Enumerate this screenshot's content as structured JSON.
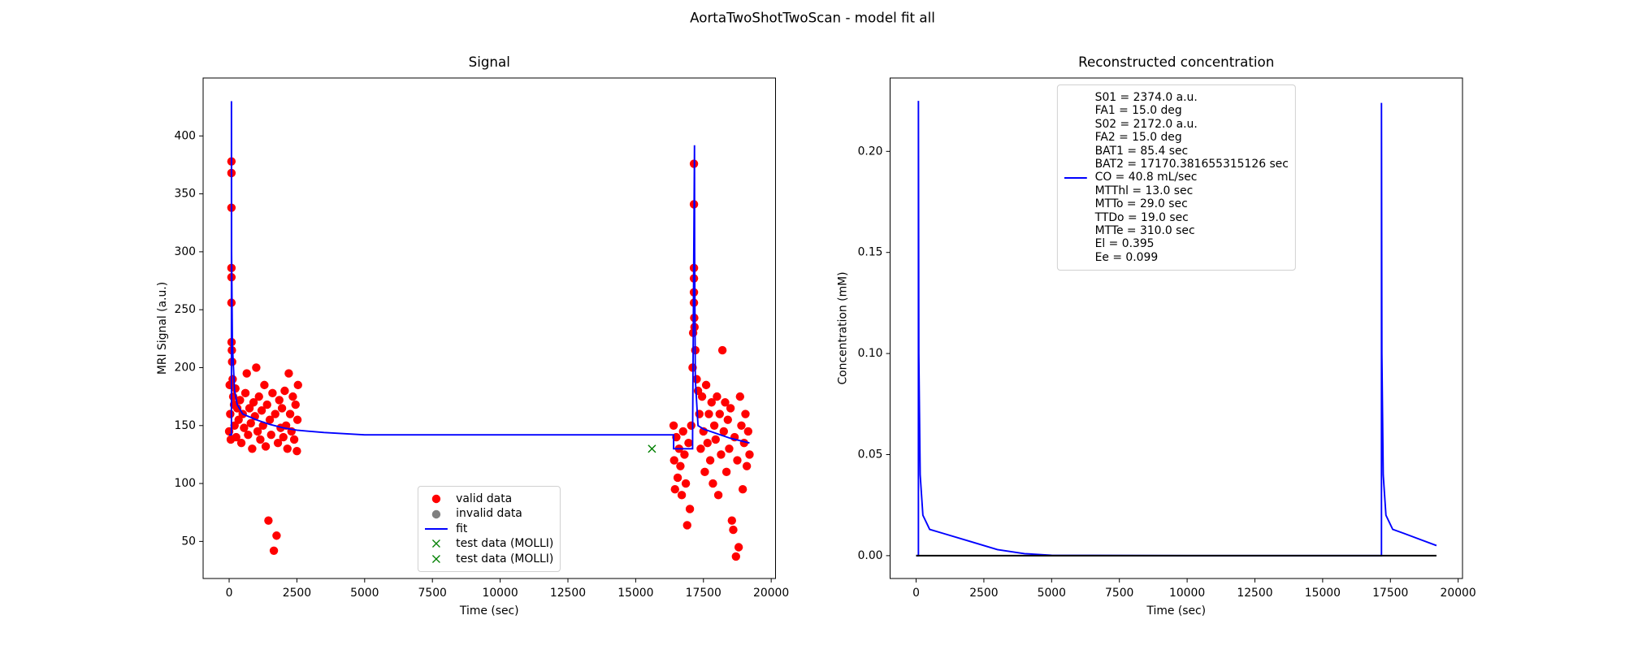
{
  "title": "AortaTwoShotTwoScan - model fit all",
  "chart_data": [
    {
      "type": "line",
      "title": "Signal",
      "xlabel": "Time (sec)",
      "ylabel": "MRI Signal (a.u.)",
      "xlim": [
        -960,
        20160
      ],
      "ylim": [
        18,
        450
      ],
      "xticks": [
        0,
        2500,
        5000,
        7500,
        10000,
        12500,
        15000,
        17500,
        20000
      ],
      "yticks": [
        50,
        100,
        150,
        200,
        250,
        300,
        350,
        400
      ],
      "legend": "lower center",
      "series": [
        {
          "name": "valid data",
          "type": "scatter",
          "marker": "o",
          "color": "#ff0000",
          "x": [
            0,
            20,
            40,
            60,
            85,
            85,
            85,
            85,
            85,
            85,
            90,
            100,
            110,
            130,
            150,
            180,
            200,
            230,
            260,
            300,
            350,
            400,
            450,
            500,
            550,
            600,
            650,
            700,
            750,
            800,
            850,
            900,
            950,
            1000,
            1050,
            1100,
            1150,
            1200,
            1250,
            1300,
            1350,
            1400,
            1450,
            1500,
            1550,
            1600,
            1650,
            1700,
            1750,
            1800,
            1850,
            1900,
            1950,
            2000,
            2050,
            2100,
            2150,
            2200,
            2250,
            2300,
            2350,
            2400,
            2450,
            2500,
            2520,
            2540,
            16400,
            16420,
            16450,
            16500,
            16550,
            16600,
            16650,
            16700,
            16750,
            16800,
            16850,
            16900,
            16950,
            17000,
            17050,
            17100,
            17120,
            17150,
            17150,
            17150,
            17150,
            17150,
            17150,
            17160,
            17170,
            17200,
            17250,
            17300,
            17350,
            17400,
            17450,
            17500,
            17550,
            17600,
            17650,
            17700,
            17750,
            17800,
            17850,
            17900,
            17950,
            18000,
            18050,
            18100,
            18150,
            18200,
            18250,
            18300,
            18350,
            18400,
            18450,
            18500,
            18550,
            18600,
            18650,
            18700,
            18750,
            18800,
            18850,
            18900,
            18950,
            19000,
            19050,
            19100,
            19150,
            19200
          ],
          "values": [
            145,
            185,
            160,
            138,
            378,
            368,
            338,
            286,
            278,
            256,
            222,
            215,
            205,
            190,
            175,
            168,
            150,
            182,
            140,
            165,
            155,
            172,
            135,
            160,
            148,
            178,
            195,
            142,
            165,
            152,
            130,
            170,
            158,
            200,
            145,
            175,
            138,
            163,
            150,
            185,
            132,
            168,
            68,
            155,
            142,
            178,
            42,
            160,
            55,
            135,
            172,
            148,
            165,
            140,
            180,
            150,
            130,
            195,
            160,
            145,
            175,
            138,
            168,
            128,
            155,
            185,
            150,
            120,
            95,
            140,
            105,
            130,
            115,
            90,
            145,
            125,
            100,
            64,
            135,
            78,
            150,
            200,
            230,
            376,
            341,
            286,
            277,
            265,
            256,
            243,
            235,
            215,
            190,
            180,
            160,
            130,
            175,
            145,
            110,
            185,
            135,
            160,
            120,
            170,
            100,
            150,
            138,
            175,
            90,
            160,
            125,
            215,
            145,
            170,
            110,
            155,
            130,
            165,
            68,
            60,
            140,
            37,
            120,
            45,
            175,
            150,
            95,
            135,
            160,
            115,
            145,
            125
          ]
        },
        {
          "name": "invalid data",
          "type": "scatter",
          "marker": "o",
          "color": "#808080",
          "x": [],
          "values": []
        },
        {
          "name": "fit",
          "type": "line",
          "color": "#0000ff",
          "x": [
            0,
            85,
            85,
            90,
            120,
            200,
            300,
            500,
            1000,
            1500,
            2000,
            2500,
            3500,
            5000,
            10000,
            16400,
            16400,
            17100,
            17100,
            17170,
            17175,
            17200,
            17300,
            17500,
            18000,
            18500,
            19200
          ],
          "values": [
            142,
            142,
            430,
            300,
            220,
            180,
            168,
            160,
            155,
            151,
            148,
            146,
            144,
            142,
            142,
            142,
            130,
            130,
            142,
            392,
            300,
            190,
            150,
            147,
            143,
            139,
            135
          ]
        },
        {
          "name": "test data (MOLLI)",
          "type": "scatter",
          "marker": "x",
          "color": "#008000",
          "x": [
            15600
          ],
          "values": [
            130
          ]
        },
        {
          "name": "test data (MOLLI)",
          "type": "scatter",
          "marker": "x",
          "color": "#008000",
          "x": [
            15600
          ],
          "values": [
            130
          ]
        }
      ]
    },
    {
      "type": "line",
      "title": "Reconstructed concentration",
      "xlabel": "Time (sec)",
      "ylabel": "Concentration (mM)",
      "xlim": [
        -960,
        20160
      ],
      "ylim": [
        -0.0113,
        0.2363
      ],
      "xticks": [
        0,
        2500,
        5000,
        7500,
        10000,
        12500,
        15000,
        17500,
        20000
      ],
      "yticks": [
        {
          "value": 0,
          "label": "0.00"
        },
        {
          "value": 0.05,
          "label": "0.05"
        },
        {
          "value": 0.1,
          "label": "0.10"
        },
        {
          "value": 0.15,
          "label": "0.15"
        },
        {
          "value": 0.2,
          "label": "0.20"
        }
      ],
      "legend": "upper center",
      "series": [
        {
          "name": "S01 = 2374.0 a.u.\nFA1 = 15.0 deg\nS02 = 2172.0 a.u.\nFA2 = 15.0 deg\nBAT1 = 85.4 sec\nBAT2 = 17170.381655315126 sec\nCO = 40.8 mL/sec\nMTThl = 13.0 sec\nMTTo = 29.0 sec\nTTDo = 19.0 sec\nMTTe = 310.0 sec\nEl = 0.395\nEe = 0.099",
          "type": "line",
          "color": "#0000ff",
          "x": [
            0,
            85,
            85,
            100,
            150,
            250,
            500,
            1000,
            2000,
            3000,
            4000,
            5000,
            10000,
            17170,
            17170,
            17185,
            17235,
            17335,
            17585,
            18000,
            18600,
            19200
          ],
          "values": [
            0,
            0,
            0.225,
            0.1,
            0.04,
            0.02,
            0.013,
            0.011,
            0.007,
            0.003,
            0.001,
            0.0002,
            0,
            0,
            0.224,
            0.1,
            0.04,
            0.02,
            0.013,
            0.011,
            0.008,
            0.005
          ]
        },
        {
          "type": "line",
          "color": "#000000",
          "x": [
            0,
            19200
          ],
          "values": [
            0,
            0
          ]
        }
      ]
    }
  ]
}
